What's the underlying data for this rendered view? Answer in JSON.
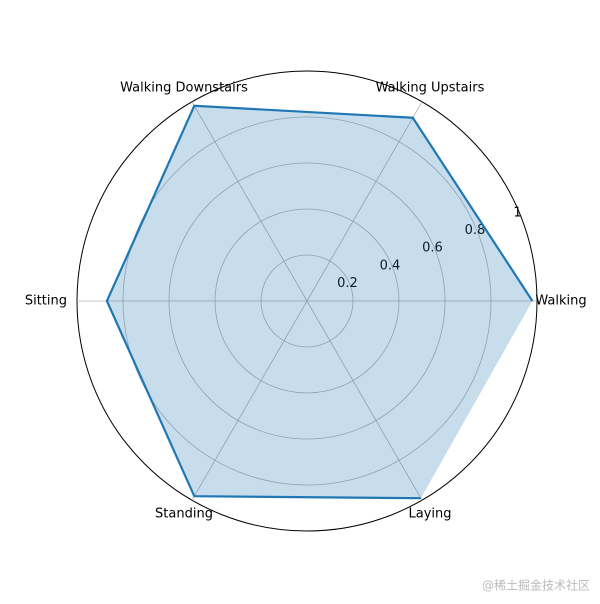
{
  "chart_data": {
    "type": "radar",
    "categories": [
      "Walking",
      "Walking Upstairs",
      "Walking Downstairs",
      "Sitting",
      "Standing",
      "Laying"
    ],
    "values": [
      0.98,
      0.92,
      0.98,
      0.87,
      0.98,
      0.99
    ],
    "color": "#1f77b4",
    "rlim": [
      0,
      1.0
    ],
    "rticks": [
      0.2,
      0.4,
      0.6,
      0.8,
      1.0
    ],
    "grid": true
  },
  "watermark": "@稀土掘金技术社区"
}
